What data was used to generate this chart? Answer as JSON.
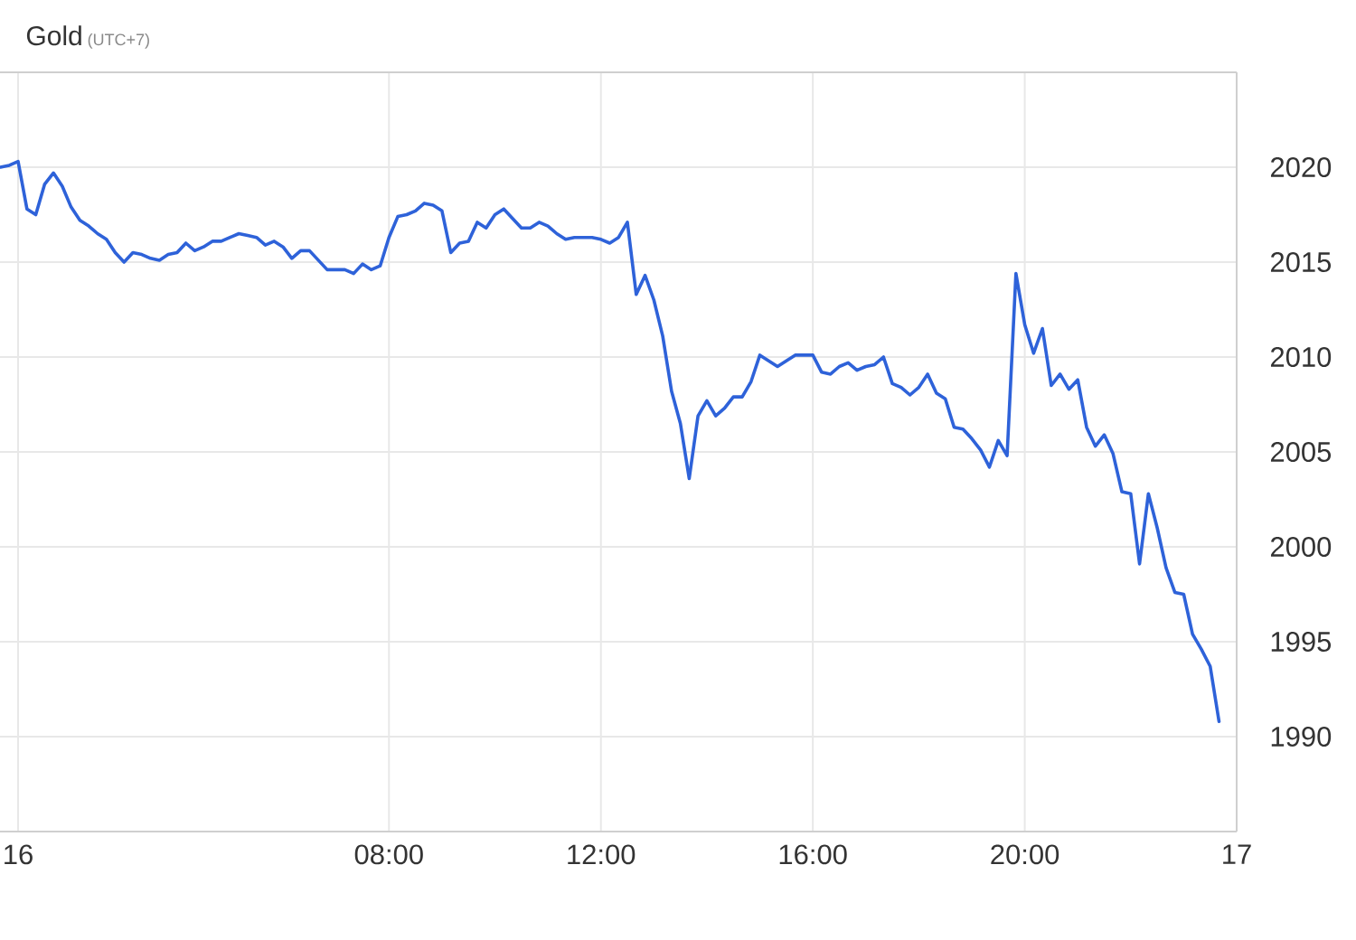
{
  "chart_data": {
    "type": "line",
    "title": "Gold",
    "subtitle": "(UTC+7)",
    "categories": [
      null,
      null,
      "16",
      null,
      null,
      null,
      null,
      null,
      null,
      null,
      null,
      null,
      null,
      null,
      null,
      null,
      null,
      null,
      null,
      null,
      null,
      null,
      null,
      null,
      null,
      null,
      null,
      null,
      null,
      null,
      null,
      null,
      null,
      null,
      null,
      null,
      null,
      null,
      null,
      null,
      null,
      null,
      null,
      null,
      "08:00",
      null,
      null,
      null,
      null,
      null,
      null,
      null,
      null,
      null,
      null,
      null,
      null,
      null,
      null,
      null,
      null,
      null,
      null,
      null,
      null,
      null,
      null,
      null,
      "12:00",
      null,
      null,
      null,
      null,
      null,
      null,
      null,
      null,
      null,
      null,
      null,
      null,
      null,
      null,
      null,
      null,
      null,
      null,
      null,
      null,
      null,
      null,
      null,
      "16:00",
      null,
      null,
      null,
      null,
      null,
      null,
      null,
      null,
      null,
      null,
      null,
      null,
      null,
      null,
      null,
      null,
      null,
      null,
      null,
      null,
      null,
      null,
      null,
      "20:00",
      null,
      null,
      null,
      null,
      null,
      null,
      null,
      null,
      null,
      null,
      null,
      null,
      null,
      null,
      null,
      null,
      null,
      null,
      null,
      null,
      null,
      null,
      null,
      "17"
    ],
    "series": [
      {
        "color": "#2e62d9",
        "values": [
          2020.0,
          2020.1,
          2020.3,
          2017.8,
          2017.5,
          2019.1,
          2019.7,
          2019.0,
          2017.9,
          2017.2,
          2016.9,
          2016.5,
          2016.2,
          2015.5,
          2015.0,
          2015.5,
          2015.4,
          2015.2,
          2015.1,
          2015.4,
          2015.5,
          2016.0,
          2015.6,
          2015.8,
          2016.1,
          2016.1,
          2016.3,
          2016.5,
          2016.4,
          2016.3,
          2015.9,
          2016.1,
          2015.8,
          2015.2,
          2015.6,
          2015.6,
          2015.1,
          2014.6,
          2014.6,
          2014.6,
          2014.4,
          2014.9,
          2014.6,
          2014.8,
          2016.3,
          2017.4,
          2017.5,
          2017.7,
          2018.1,
          2018.0,
          2017.7,
          2015.5,
          2016.0,
          2016.1,
          2017.1,
          2016.8,
          2017.5,
          2017.8,
          2017.3,
          2016.8,
          2016.8,
          2017.1,
          2016.9,
          2016.5,
          2016.2,
          2016.3,
          2016.3,
          2016.3,
          2016.2,
          2016.0,
          2016.3,
          2017.1,
          2013.3,
          2014.3,
          2013.0,
          2011.1,
          2008.2,
          2006.5,
          2003.6,
          2006.9,
          2007.7,
          2006.9,
          2007.3,
          2007.9,
          2007.9,
          2008.7,
          2010.1,
          2009.8,
          2009.5,
          2009.8,
          2010.1,
          2010.1,
          2010.1,
          2009.2,
          2009.1,
          2009.5,
          2009.7,
          2009.3,
          2009.5,
          2009.6,
          2010.0,
          2008.6,
          2008.4,
          2008.0,
          2008.4,
          2009.1,
          2008.1,
          2007.8,
          2006.3,
          2006.2,
          2005.7,
          2005.1,
          2004.2,
          2005.6,
          2004.8,
          2014.4,
          2011.7,
          2010.2,
          2011.5,
          2008.5,
          2009.1,
          2008.3,
          2008.8,
          2006.3,
          2005.3,
          2005.9,
          2004.9,
          2002.9,
          2002.8,
          1999.1,
          2002.8,
          2001.0,
          1998.9,
          1997.6,
          1997.5,
          1995.4,
          1994.6,
          1993.7,
          1990.8,
          null,
          null
        ]
      }
    ],
    "ylim": [
      1985,
      2025
    ],
    "yticks": [
      1990,
      1995,
      2000,
      2005,
      2010,
      2015,
      2020
    ],
    "grid": true,
    "line_style": "solid"
  }
}
